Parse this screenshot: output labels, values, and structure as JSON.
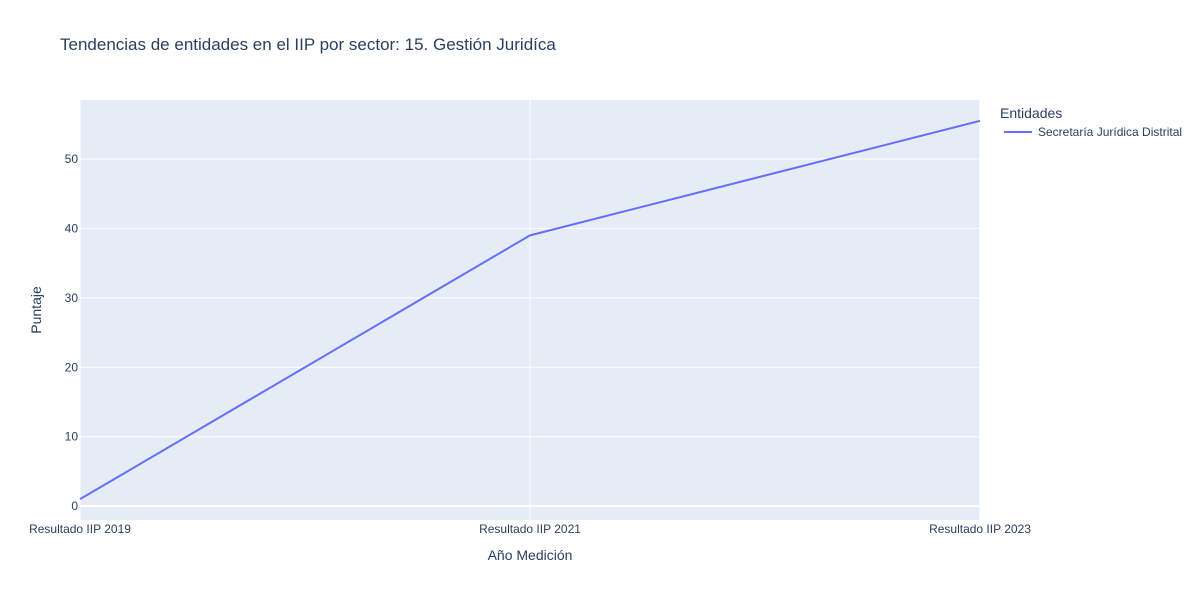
{
  "chart_data": {
    "type": "line",
    "title": "Tendencias de entidades en el IIP por sector: 15. Gestión Juridíca",
    "xlabel": "Año Medición",
    "ylabel": "Puntaje",
    "categories": [
      "Resultado IIP 2019",
      "Resultado IIP 2021",
      "Resultado IIP 2023"
    ],
    "yticks": [
      "0",
      "10",
      "20",
      "30",
      "40",
      "50"
    ],
    "ylim": [
      -2,
      58.5
    ],
    "grid": true,
    "legend": {
      "title": "Entidades",
      "placement": "right"
    },
    "series": [
      {
        "name": "Secretaría Jurídica Distrital",
        "values": [
          1,
          39,
          55.5
        ],
        "color": "#636efa"
      }
    ]
  },
  "colors": {
    "plot_background": "#e5ecf6",
    "grid": "#ffffff",
    "text": "#2a3f5f"
  }
}
